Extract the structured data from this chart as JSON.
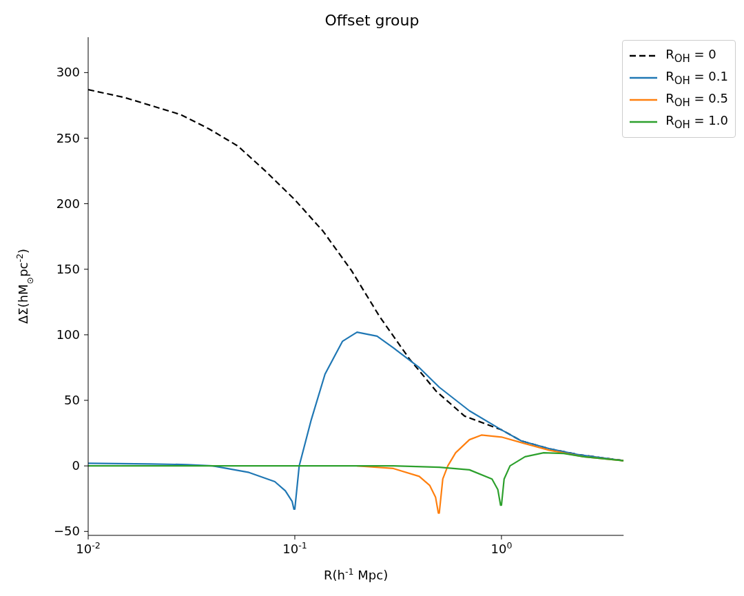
{
  "chart_data": {
    "type": "line",
    "title": "Offset group",
    "xlabel": "R(h$^{-1}$ Mpc)",
    "ylabel": "ΔΣ(hM$_{⊙}$pc$^{-2}$)",
    "log": "x",
    "grid": false,
    "legend": "top right",
    "xlim": [
      0.01,
      3.9
    ],
    "xticks": [
      {
        "value": 0.01,
        "label": "10$^{-2}$"
      },
      {
        "value": 0.1,
        "label": "10$^{-1}$"
      },
      {
        "value": 1,
        "label": "10$^{0}$"
      }
    ],
    "ylim": [
      -53,
      327
    ],
    "yticks": [
      -50,
      0,
      50,
      100,
      150,
      200,
      250,
      300
    ],
    "series": [
      {
        "name": "R$_{OH}$ = 0",
        "color": "#000000",
        "line_style": "dashed",
        "x": [
          0.01,
          0.015,
          0.028,
          0.0385,
          0.053,
          0.072,
          0.1,
          0.137,
          0.188,
          0.257,
          0.357,
          0.483,
          0.663,
          1.0,
          1.25,
          1.71,
          2.35,
          3.9
        ],
        "values": [
          287,
          281,
          268,
          257,
          244,
          225,
          203,
          179,
          149,
          114,
          82,
          57,
          38,
          27.5,
          19,
          13,
          8.6,
          4
        ]
      },
      {
        "name": "R$_{OH}$ = 0.1",
        "color": "#1f77b4",
        "x": [
          0.01,
          0.02,
          0.03,
          0.04,
          0.06,
          0.08,
          0.09,
          0.097,
          0.099,
          0.1,
          0.105,
          0.12,
          0.14,
          0.17,
          0.2,
          0.25,
          0.3,
          0.4,
          0.5,
          0.7,
          1.0,
          1.25,
          1.71,
          2.35,
          3.9
        ],
        "values": [
          2,
          1.5,
          1,
          0,
          -5,
          -12,
          -19,
          -27,
          -33,
          -33,
          0,
          35,
          70,
          95,
          102,
          99,
          90,
          75,
          60,
          42,
          27.5,
          19,
          13,
          8.6,
          4
        ]
      },
      {
        "name": "R$_{OH}$ = 0.5",
        "color": "#ff7f0e",
        "x": [
          0.2,
          0.3,
          0.4,
          0.45,
          0.48,
          0.495,
          0.5,
          0.52,
          0.55,
          0.6,
          0.7,
          0.8,
          1.0,
          1.3,
          1.7,
          2.5,
          3.9
        ],
        "values": [
          0,
          -2,
          -8,
          -15,
          -24,
          -36,
          -36,
          -10,
          0,
          10,
          20,
          23.5,
          22,
          17,
          12,
          7,
          4
        ]
      },
      {
        "name": "R$_{OH}$ = 1.0",
        "color": "#2ca02c",
        "x": [
          0.01,
          0.1,
          0.3,
          0.5,
          0.7,
          0.9,
          0.96,
          0.99,
          1.0,
          1.03,
          1.1,
          1.3,
          1.6,
          2.0,
          2.5,
          3.9
        ],
        "values": [
          0,
          0,
          0,
          -1,
          -3,
          -10,
          -18,
          -30,
          -30,
          -10,
          0,
          7,
          10,
          9.5,
          7,
          4
        ]
      }
    ]
  }
}
